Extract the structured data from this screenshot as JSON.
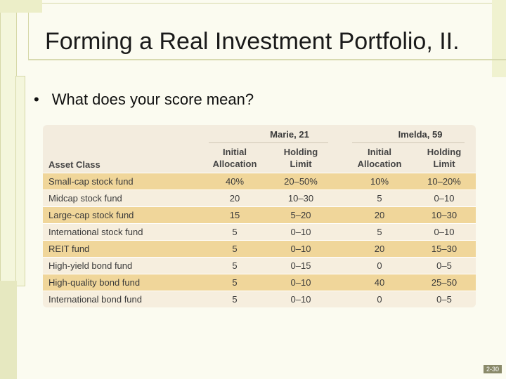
{
  "slide": {
    "title": "Forming a Real Investment Portfolio, II.",
    "bullet": "What does your score mean?",
    "page_number": "2-30"
  },
  "table": {
    "groups": [
      "Marie, 21",
      "Imelda, 59"
    ],
    "headers": {
      "asset_class": "Asset Class",
      "initial_allocation": "Initial\nAllocation",
      "holding_limit": "Holding\nLimit"
    },
    "rows": [
      {
        "asset": "Small-cap stock fund",
        "m_alloc": "40%",
        "m_limit": "20–50%",
        "i_alloc": "10%",
        "i_limit": "10–20%"
      },
      {
        "asset": "Midcap stock fund",
        "m_alloc": "20",
        "m_limit": "10–30",
        "i_alloc": "5",
        "i_limit": "0–10"
      },
      {
        "asset": "Large-cap stock fund",
        "m_alloc": "15",
        "m_limit": "5–20",
        "i_alloc": "20",
        "i_limit": "10–30"
      },
      {
        "asset": "International stock fund",
        "m_alloc": "5",
        "m_limit": "0–10",
        "i_alloc": "5",
        "i_limit": "0–10"
      },
      {
        "asset": "REIT fund",
        "m_alloc": "5",
        "m_limit": "0–10",
        "i_alloc": "20",
        "i_limit": "15–30"
      },
      {
        "asset": "High-yield bond fund",
        "m_alloc": "5",
        "m_limit": "0–15",
        "i_alloc": "0",
        "i_limit": "0–5"
      },
      {
        "asset": "High-quality bond fund",
        "m_alloc": "5",
        "m_limit": "0–10",
        "i_alloc": "40",
        "i_limit": "25–50"
      },
      {
        "asset": "International bond fund",
        "m_alloc": "5",
        "m_limit": "0–10",
        "i_alloc": "0",
        "i_limit": "0–5"
      }
    ]
  },
  "colors": {
    "odd_row": "#f0d69a",
    "even_row": "#f6eede",
    "table_bg": "#f3ecde"
  }
}
